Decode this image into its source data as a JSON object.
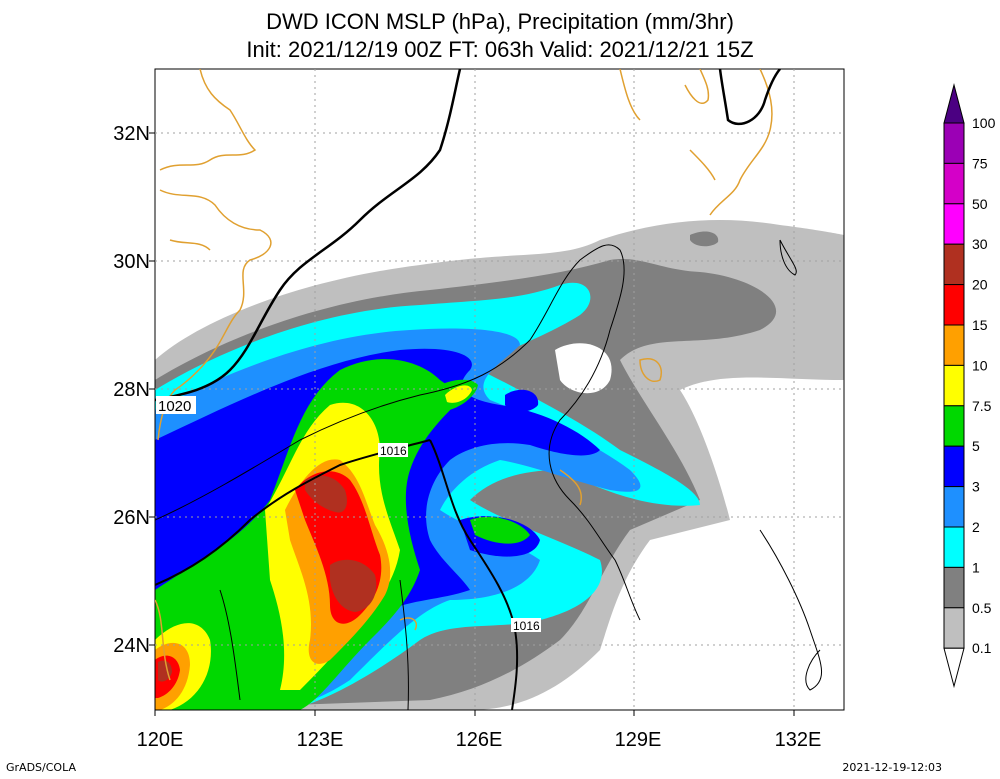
{
  "title_line1": "DWD ICON MSLP (hPa), Precipitation (mm/3hr)",
  "title_line2": "Init: 2021/12/19 00Z  FT: 063h  Valid: 2021/12/21 15Z",
  "footer_left": "GrADS/COLA",
  "footer_right": "2021-12-19-12:03",
  "lat_labels": [
    "32N",
    "30N",
    "28N",
    "26N",
    "24N"
  ],
  "lon_labels": [
    "120E",
    "123E",
    "126E",
    "129E",
    "132E"
  ],
  "colorbar": {
    "labels": [
      "100",
      "75",
      "50",
      "30",
      "20",
      "15",
      "10",
      "7.5",
      "5",
      "3",
      "2",
      "1",
      "0.5",
      "0.1"
    ],
    "colors": [
      "#4b0082",
      "#9b00b5",
      "#d400c8",
      "#ff00ff",
      "#b03020",
      "#ff0000",
      "#ffa000",
      "#ffff00",
      "#00d800",
      "#0000ff",
      "#1e90ff",
      "#00ffff",
      "#808080",
      "#bfbfbf"
    ]
  },
  "isobar_labels": [
    "1020",
    "1016",
    "1016"
  ],
  "colors": {
    "coastline": "#e0a030",
    "isobar": "#000000",
    "grid": "#a0a0a0"
  }
}
